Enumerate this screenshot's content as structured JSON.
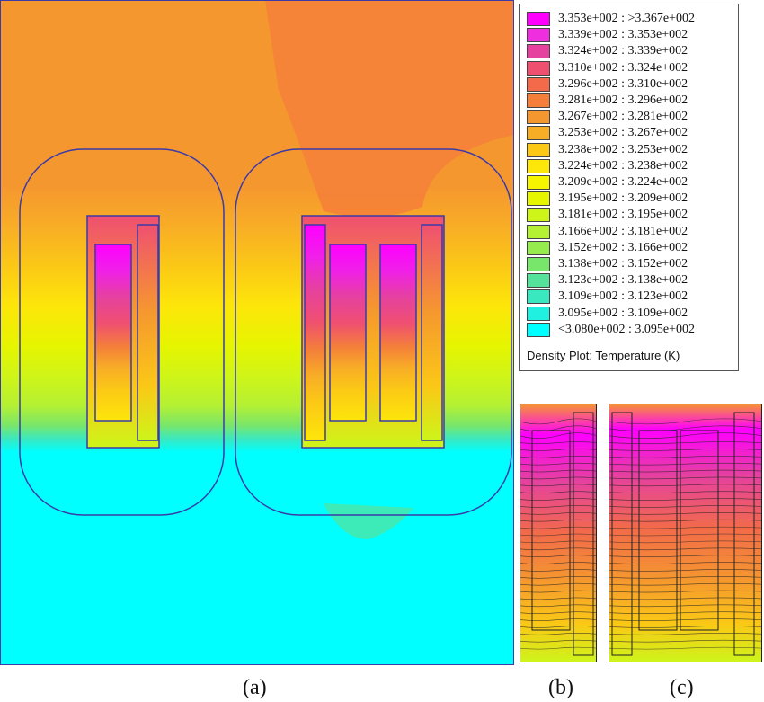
{
  "legend": {
    "entries": [
      {
        "label": "3.353e+002 : >3.367e+002",
        "color": "#ff00ff"
      },
      {
        "label": "3.339e+002 : 3.353e+002",
        "color": "#ef2ee0"
      },
      {
        "label": "3.324e+002 : 3.339e+002",
        "color": "#e5419f"
      },
      {
        "label": "3.310e+002 : 3.324e+002",
        "color": "#f05070"
      },
      {
        "label": "3.296e+002 : 3.310e+002",
        "color": "#f26a4a"
      },
      {
        "label": "3.281e+002 : 3.296e+002",
        "color": "#f47f3a"
      },
      {
        "label": "3.267e+002 : 3.281e+002",
        "color": "#f5972f"
      },
      {
        "label": "3.253e+002 : 3.267e+002",
        "color": "#f8ad26"
      },
      {
        "label": "3.238e+002 : 3.253e+002",
        "color": "#fbc816"
      },
      {
        "label": "3.224e+002 : 3.238e+002",
        "color": "#fde60a"
      },
      {
        "label": "3.209e+002 : 3.224e+002",
        "color": "#f5f500"
      },
      {
        "label": "3.195e+002 : 3.209e+002",
        "color": "#e6f500"
      },
      {
        "label": "3.181e+002 : 3.195e+002",
        "color": "#cdf51a"
      },
      {
        "label": "3.166e+002 : 3.181e+002",
        "color": "#b4f033"
      },
      {
        "label": "3.152e+002 : 3.166e+002",
        "color": "#96eb4d"
      },
      {
        "label": "3.138e+002 : 3.152e+002",
        "color": "#78e66b"
      },
      {
        "label": "3.123e+002 : 3.138e+002",
        "color": "#55e29a"
      },
      {
        "label": "3.109e+002 : 3.123e+002",
        "color": "#3ae8c0"
      },
      {
        "label": "3.095e+002 : 3.109e+002",
        "color": "#1ff0e0"
      },
      {
        "label": "<3.080e+002 : 3.095e+002",
        "color": "#00ffff"
      }
    ],
    "caption": "Density Plot: Temperature (K)"
  },
  "captions": {
    "a": "(a)",
    "b": "(b)",
    "c": "(c)"
  },
  "colors": {
    "outline": "#3a3aa8",
    "contour": "#222222"
  }
}
